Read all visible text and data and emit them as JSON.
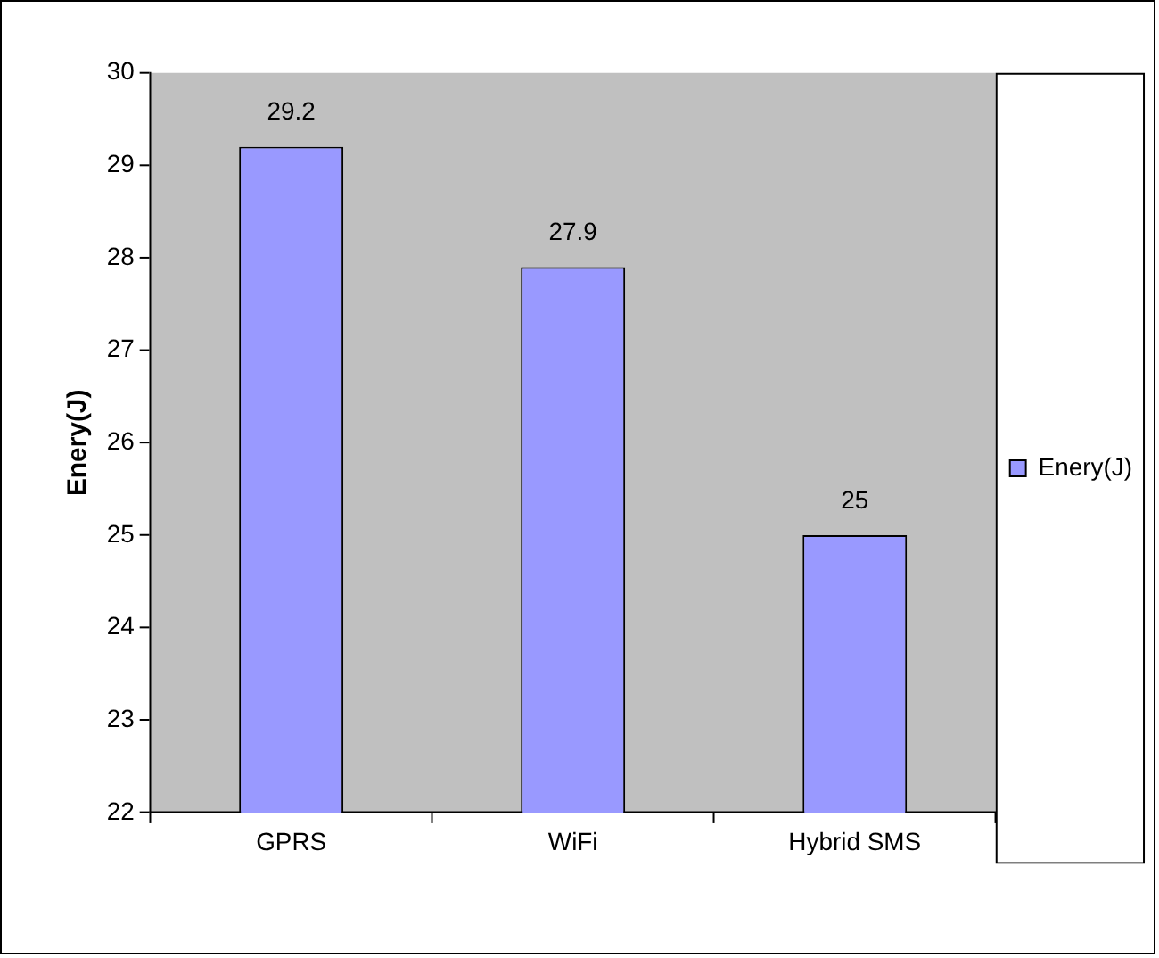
{
  "chart_data": {
    "type": "bar",
    "ylabel": "Enery(J)",
    "categories": [
      "GPRS",
      "WiFi",
      "Hybrid SMS"
    ],
    "series": [
      {
        "name": "Enery(J)",
        "color": "#9999ff",
        "values": [
          29.2,
          27.9,
          25
        ]
      }
    ],
    "ylim": [
      22,
      30
    ],
    "yticks": [
      22,
      23,
      24,
      25,
      26,
      27,
      28,
      29,
      30
    ],
    "data_labels": true,
    "grid": false,
    "legend": "right"
  }
}
